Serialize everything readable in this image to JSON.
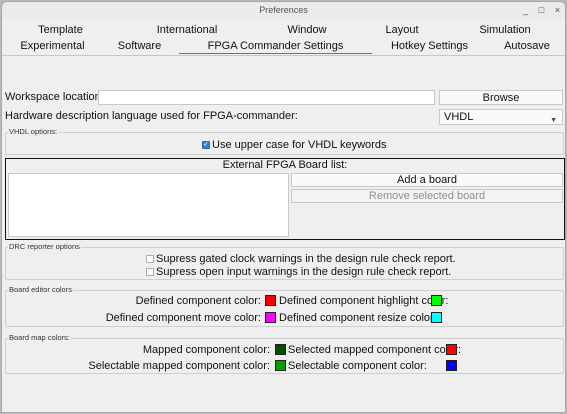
{
  "window": {
    "title": "Preferences",
    "controls": [
      "_",
      "□",
      "×"
    ]
  },
  "tabs": {
    "row1": [
      "Template",
      "International",
      "Window",
      "Layout",
      "Simulation"
    ],
    "row2": [
      "Experimental",
      "Software",
      "FPGA Commander Settings",
      "Hotkey Settings",
      "Autosave"
    ],
    "active": "FPGA Commander Settings"
  },
  "workspace": {
    "label": "Workspace location:",
    "value": "",
    "browse_label": "Browse"
  },
  "hdl": {
    "label": "Hardware description language used for FPGA-commander:",
    "selected": "VHDL"
  },
  "vhdl_options": {
    "title": "VHDL options:",
    "uppercase_label": "Use upper case for VHDL keywords",
    "uppercase_checked": true
  },
  "board_list": {
    "title": "External FPGA Board list:",
    "items": [],
    "add_label": "Add a board",
    "remove_label": "Remove selected board"
  },
  "drc": {
    "title": "DRC reporter options",
    "gated_clock_label": "Supress gated clock warnings in the design rule check report.",
    "gated_clock_checked": false,
    "open_input_label": "Supress open input warnings in the design rule check report.",
    "open_input_checked": false
  },
  "board_editor_colors": {
    "title": "Board editor colors",
    "defined_label": "Defined component color:",
    "defined_color": "#ff0000",
    "highlight_label": "Defined component highlight color:",
    "highlight_color": "#00ff00",
    "move_label": "Defined component move color:",
    "move_color": "#ff00ff",
    "resize_label": "Defined component resize color:",
    "resize_color": "#00ffff"
  },
  "board_map_colors": {
    "title": "Board map colors:",
    "mapped_label": "Mapped component color:",
    "mapped_color": "#005000",
    "selected_mapped_label": "Selected mapped component color:",
    "selected_mapped_color": "#ff0000",
    "selectable_mapped_label": "Selectable mapped component color:",
    "selectable_mapped_color": "#00a000",
    "selectable_label": "Selectable component color:",
    "selectable_color": "#0000ff"
  }
}
